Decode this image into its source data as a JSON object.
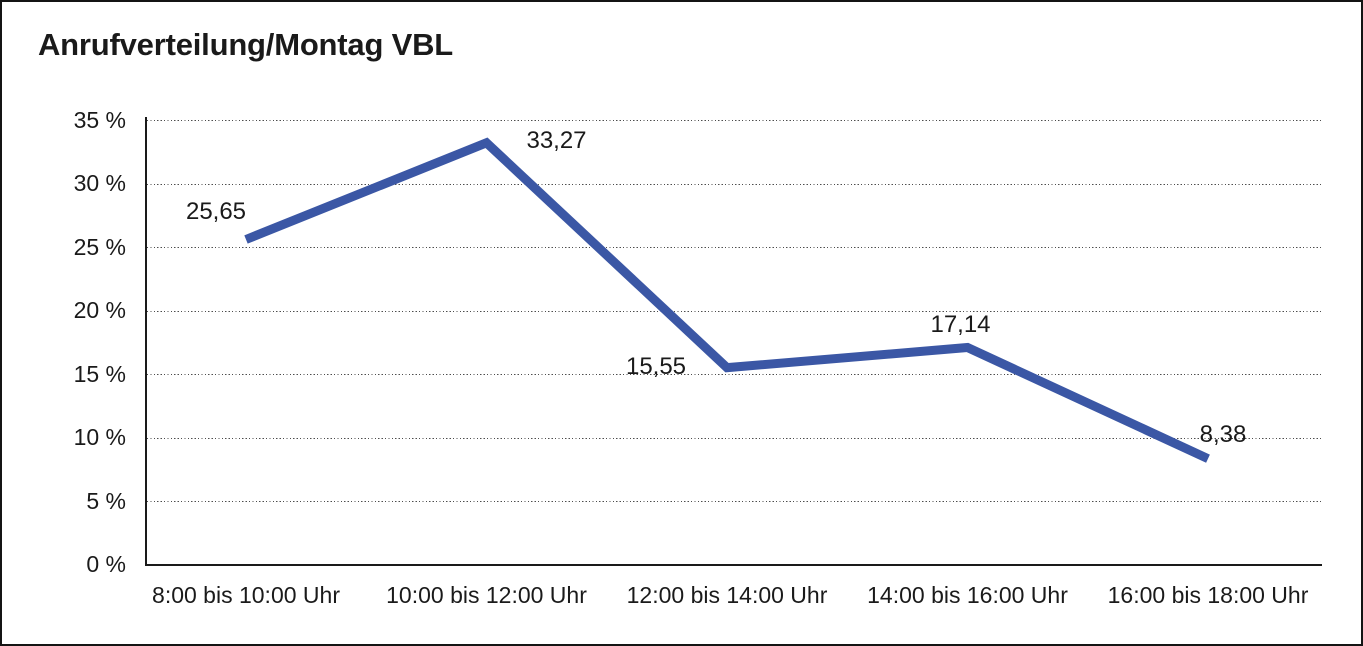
{
  "title": "Anrufverteilung/Montag VBL",
  "chart_data": {
    "type": "line",
    "title": "Anrufverteilung/Montag VBL",
    "categories": [
      "8:00 bis 10:00 Uhr",
      "10:00 bis 12:00 Uhr",
      "12:00 bis 14:00 Uhr",
      "14:00 bis 16:00 Uhr",
      "16:00 bis 18:00 Uhr"
    ],
    "values": [
      25.65,
      33.27,
      15.55,
      17.14,
      8.38
    ],
    "data_labels": [
      "25,65",
      "33,27",
      "15,55",
      "17,14",
      "8,38"
    ],
    "unit": "%",
    "xlabel": "",
    "ylabel": "",
    "ylim": [
      0,
      35
    ],
    "y_tick_step": 5,
    "y_ticks": [
      {
        "value": 35,
        "label": "35 %"
      },
      {
        "value": 30,
        "label": "30 %"
      },
      {
        "value": 25,
        "label": "25 %"
      },
      {
        "value": 20,
        "label": "20 %"
      },
      {
        "value": 15,
        "label": "15 %"
      },
      {
        "value": 10,
        "label": "10 %"
      },
      {
        "value": 5,
        "label": "5 %"
      },
      {
        "value": 0,
        "label": "0 %"
      }
    ],
    "grid": "horizontal-dotted",
    "legend_position": "none",
    "line_color": "#3B57A5",
    "axis_color": "#1a1a1a",
    "gridline_color": "#4d4d4d",
    "background_color": "#ffffff"
  }
}
